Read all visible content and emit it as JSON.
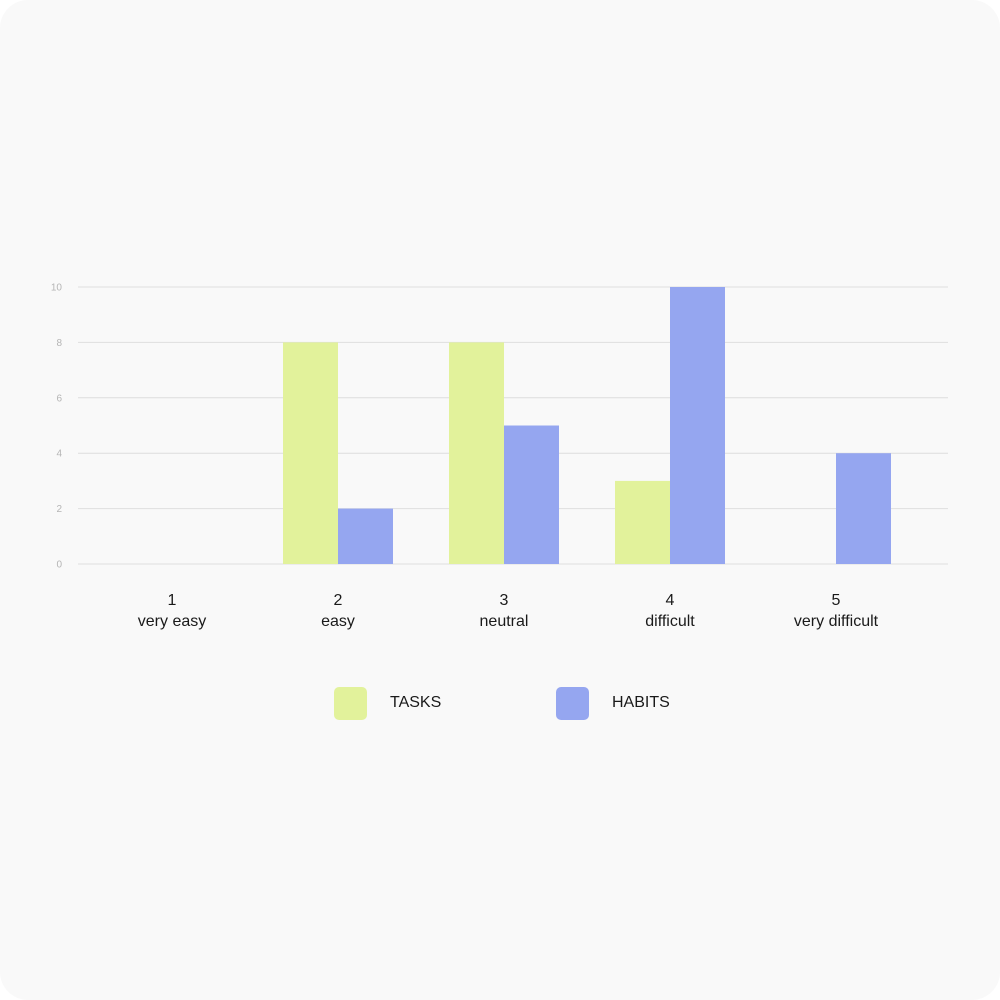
{
  "chart_data": {
    "type": "bar",
    "categories": [
      "1",
      "2",
      "3",
      "4",
      "5"
    ],
    "category_labels": [
      "very easy",
      "easy",
      "neutral",
      "difficult",
      "very difficult"
    ],
    "series": [
      {
        "name": "TASKS",
        "values": [
          0,
          8,
          8,
          3,
          0
        ],
        "color": "#e2f29b"
      },
      {
        "name": "HABITS",
        "values": [
          0,
          2,
          5,
          10,
          4
        ],
        "color": "#95a6f0"
      }
    ],
    "yticks": [
      "0",
      "2",
      "4",
      "6",
      "8",
      "10"
    ],
    "ylim": [
      0,
      10
    ],
    "grid": true,
    "legend_position": "bottom-center",
    "title": "",
    "xlabel": "",
    "ylabel": ""
  },
  "colors": {
    "card_background": "#f9f9f9",
    "gridline": "#dedede",
    "tick_text": "#b5b5b5",
    "label_text": "#1a1a1a"
  }
}
